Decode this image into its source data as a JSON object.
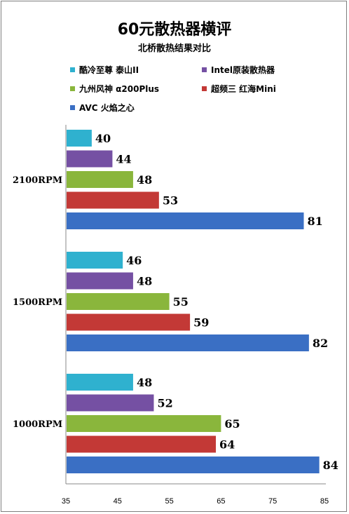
{
  "chart_data": {
    "type": "bar",
    "orientation": "horizontal",
    "title": "60元散热器横评",
    "subtitle": "北桥散热结果对比",
    "categories": [
      "2100RPM",
      "1500RPM",
      "1000RPM"
    ],
    "series": [
      {
        "name": "酷冷至尊 泰山II",
        "color": "#2fb1cf",
        "values": [
          40,
          46,
          48
        ]
      },
      {
        "name": "Intel原装散热器",
        "color": "#7550a3",
        "values": [
          44,
          48,
          52
        ]
      },
      {
        "name": "九州风神 α200Plus",
        "color": "#8ab63c",
        "values": [
          48,
          55,
          65
        ]
      },
      {
        "name": "超频三 红海Mini",
        "color": "#c33936",
        "values": [
          53,
          59,
          64
        ]
      },
      {
        "name": "AVC 火焰之心",
        "color": "#3a6fc4",
        "values": [
          81,
          82,
          84
        ]
      }
    ],
    "xlim": [
      35,
      85
    ],
    "xticks": [
      35,
      45,
      55,
      65,
      75,
      85
    ],
    "grid": false,
    "legend_position": "top"
  }
}
